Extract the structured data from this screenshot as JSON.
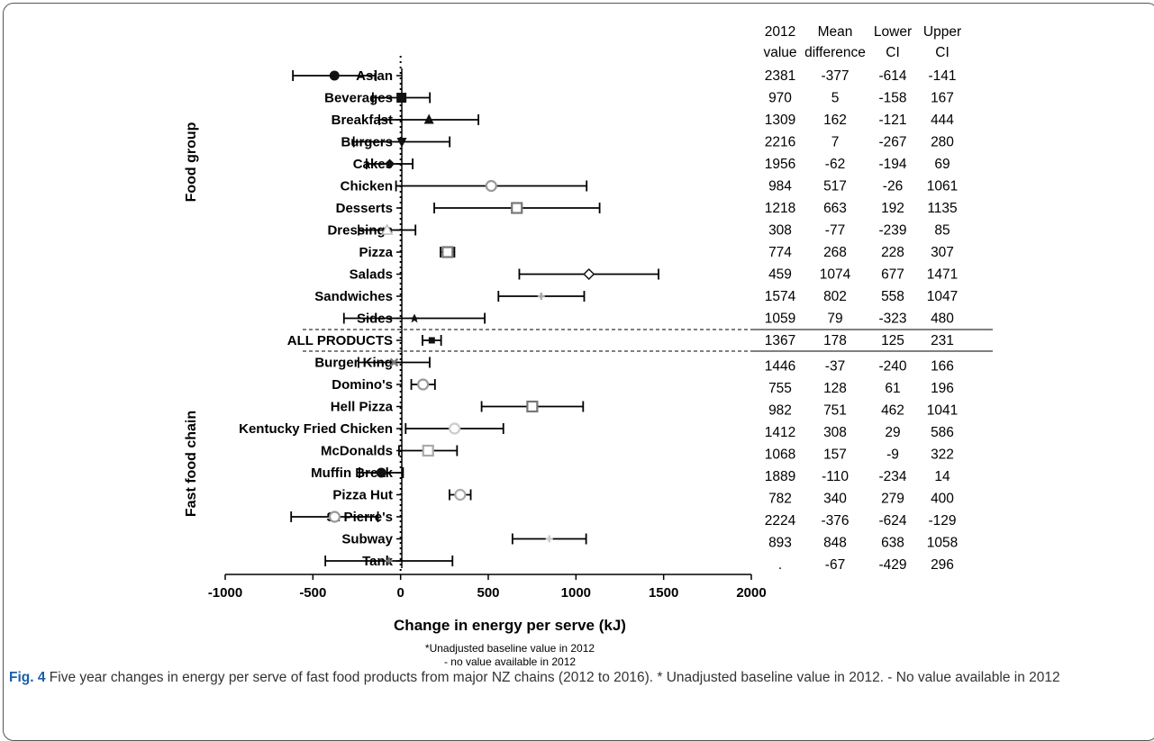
{
  "chart_data": {
    "type": "forest",
    "xlabel": "Change in energy per serve (kJ)",
    "xlim": [
      -1000,
      2000
    ],
    "xticks": [
      "-1000",
      "-500",
      "0",
      "500",
      "1000",
      "1500",
      "2000"
    ],
    "xtick_values": [
      -1000,
      -500,
      0,
      500,
      1000,
      1500,
      2000
    ],
    "group_labels": [
      "Food group",
      "Fast food chain"
    ],
    "table_headers": [
      [
        "2012",
        "value"
      ],
      [
        "Mean",
        "difference"
      ],
      [
        "Lower",
        "CI"
      ],
      [
        "Upper",
        "CI"
      ]
    ],
    "rows": [
      {
        "label": "Asian",
        "group": "Food group",
        "mean": -377,
        "lower": -614,
        "upper": -141,
        "v2012": "2381",
        "md": "-377",
        "lo": "-614",
        "hi": "-141",
        "marker": "circle",
        "color": "#111111"
      },
      {
        "label": "Beverages",
        "group": "Food group",
        "mean": 5,
        "lower": -158,
        "upper": 167,
        "v2012": "970",
        "md": "5",
        "lo": "-158",
        "hi": "167",
        "marker": "square",
        "color": "#111111"
      },
      {
        "label": "Breakfast",
        "group": "Food group",
        "mean": 162,
        "lower": -121,
        "upper": 444,
        "v2012": "1309",
        "md": "162",
        "lo": "-121",
        "hi": "444",
        "marker": "triangle",
        "color": "#111111"
      },
      {
        "label": "Burgers",
        "group": "Food group",
        "mean": 7,
        "lower": -267,
        "upper": 280,
        "v2012": "2216",
        "md": "7",
        "lo": "-267",
        "hi": "280",
        "marker": "triangle-down",
        "color": "#111111"
      },
      {
        "label": "Cakes",
        "group": "Food group",
        "mean": -62,
        "lower": -194,
        "upper": 69,
        "v2012": "1956",
        "md": "-62",
        "lo": "-194",
        "hi": "69",
        "marker": "diamond",
        "color": "#111111"
      },
      {
        "label": "Chicken",
        "group": "Food group",
        "mean": 517,
        "lower": -26,
        "upper": 1061,
        "v2012": "984",
        "md": "517",
        "lo": "-26",
        "hi": "1061",
        "marker": "circle-open",
        "color": "#999999"
      },
      {
        "label": "Desserts",
        "group": "Food group",
        "mean": 663,
        "lower": 192,
        "upper": 1135,
        "v2012": "1218",
        "md": "663",
        "lo": "192",
        "hi": "1135",
        "marker": "square-open",
        "color": "#777777"
      },
      {
        "label": "Dressings",
        "group": "Food group",
        "mean": -77,
        "lower": -239,
        "upper": 85,
        "v2012": "308",
        "md": "-77",
        "lo": "-239",
        "hi": "85",
        "marker": "triangle-open",
        "color": "#bbbbbb"
      },
      {
        "label": "Pizza",
        "group": "Food group",
        "mean": 268,
        "lower": 228,
        "upper": 307,
        "v2012": "774",
        "md": "268",
        "lo": "228",
        "hi": "307",
        "marker": "square-open",
        "color": "#777777"
      },
      {
        "label": "Salads",
        "group": "Food group",
        "mean": 1074,
        "lower": 677,
        "upper": 1471,
        "v2012": "459",
        "md": "1074",
        "lo": "677",
        "hi": "1471",
        "marker": "diamond-open",
        "color": "#111111"
      },
      {
        "label": "Sandwiches",
        "group": "Food group",
        "mean": 802,
        "lower": 558,
        "upper": 1047,
        "v2012": "1574",
        "md": "802",
        "lo": "558",
        "hi": "1047",
        "marker": "plus",
        "color": "#aaaaaa"
      },
      {
        "label": "Sides",
        "group": "Food group",
        "mean": 79,
        "lower": -323,
        "upper": 480,
        "v2012": "1059",
        "md": "79",
        "lo": "-323",
        "hi": "480",
        "marker": "star",
        "color": "#111111"
      },
      {
        "label": "ALL PRODUCTS",
        "group": "All",
        "mean": 178,
        "lower": 125,
        "upper": 231,
        "v2012": "1367",
        "md": "178",
        "lo": "125",
        "hi": "231",
        "marker": "small-square",
        "color": "#111111"
      },
      {
        "label": "Burger King",
        "group": "Fast food chain",
        "mean": -37,
        "lower": -240,
        "upper": 166,
        "v2012": "1446",
        "md": "-37",
        "lo": "-240",
        "hi": "166",
        "marker": "x",
        "color": "#777777"
      },
      {
        "label": "Domino's",
        "group": "Fast food chain",
        "mean": 128,
        "lower": 61,
        "upper": 196,
        "v2012": "755",
        "md": "128",
        "lo": "61",
        "hi": "196",
        "marker": "circle-open",
        "color": "#999999"
      },
      {
        "label": "Hell Pizza",
        "group": "Fast food chain",
        "mean": 751,
        "lower": 462,
        "upper": 1041,
        "v2012": "982",
        "md": "751",
        "lo": "462",
        "hi": "1041",
        "marker": "square-open",
        "color": "#777777"
      },
      {
        "label": "Kentucky Fried Chicken",
        "group": "Fast food chain",
        "mean": 308,
        "lower": 29,
        "upper": 586,
        "v2012": "1412",
        "md": "308",
        "lo": "29",
        "hi": "586",
        "marker": "circle-open",
        "color": "#cccccc"
      },
      {
        "label": "McDonalds",
        "group": "Fast food chain",
        "mean": 157,
        "lower": -9,
        "upper": 322,
        "v2012": "1068",
        "md": "157",
        "lo": "-9",
        "hi": "322",
        "marker": "square-open",
        "color": "#aaaaaa"
      },
      {
        "label": "Muffin Break",
        "group": "Fast food chain",
        "mean": -110,
        "lower": -234,
        "upper": 14,
        "v2012": "1889",
        "md": "-110",
        "lo": "-234",
        "hi": "14",
        "marker": "circle",
        "color": "#111111"
      },
      {
        "label": "Pizza Hut",
        "group": "Fast food chain",
        "mean": 340,
        "lower": 279,
        "upper": 400,
        "v2012": "782",
        "md": "340",
        "lo": "279",
        "hi": "400",
        "marker": "circle-open",
        "color": "#aaaaaa"
      },
      {
        "label": "St Pierre's",
        "group": "Fast food chain",
        "mean": -376,
        "lower": -624,
        "upper": -129,
        "v2012": "2224",
        "md": "-376",
        "lo": "-624",
        "hi": "-129",
        "marker": "circle-open",
        "color": "#999999"
      },
      {
        "label": "Subway",
        "group": "Fast food chain",
        "mean": 848,
        "lower": 638,
        "upper": 1058,
        "v2012": "893",
        "md": "848",
        "lo": "638",
        "hi": "1058",
        "marker": "plus",
        "color": "#cccccc"
      },
      {
        "label": "Tank",
        "group": "Fast food chain",
        "mean": -67,
        "lower": -429,
        "upper": 296,
        "v2012": ".",
        "md": "-67",
        "lo": "-429",
        "hi": "296",
        "marker": "plus",
        "color": "#777777"
      }
    ],
    "reference_line_x": 0,
    "footnotes": [
      "*Unadjusted baseline value in 2012",
      "- no value available in 2012"
    ]
  },
  "caption": {
    "label": "Fig. 4",
    "text": " Five year changes in energy per serve of fast food products from major NZ chains (2012 to 2016). * Unadjusted baseline value in 2012. - No value available in 2012"
  }
}
